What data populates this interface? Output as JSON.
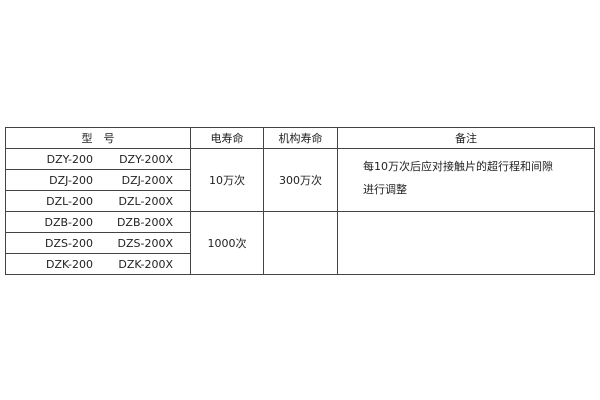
{
  "headers": {
    "model": "型　号",
    "electrical_life": "电寿命",
    "mechanical_life": "机构寿命",
    "remarks": "备注"
  },
  "rows": [
    {
      "model_a": "DZY-200",
      "model_b": "DZY-200X"
    },
    {
      "model_a": "DZJ-200",
      "model_b": "DZJ-200X"
    },
    {
      "model_a": "DZL-200",
      "model_b": "DZL-200X"
    },
    {
      "model_a": "DZB-200",
      "model_b": "DZB-200X"
    },
    {
      "model_a": "DZS-200",
      "model_b": "DZS-200X"
    },
    {
      "model_a": "DZK-200",
      "model_b": "DZK-200X"
    }
  ],
  "groups": [
    {
      "electrical_life": "10万次",
      "mechanical_life": "300万次",
      "remark_line1": "每10万次后应对接触片的超行程和间隙",
      "remark_line2": "进行调整"
    },
    {
      "electrical_life": "1000次",
      "mechanical_life": "",
      "remark_line1": "",
      "remark_line2": ""
    }
  ]
}
